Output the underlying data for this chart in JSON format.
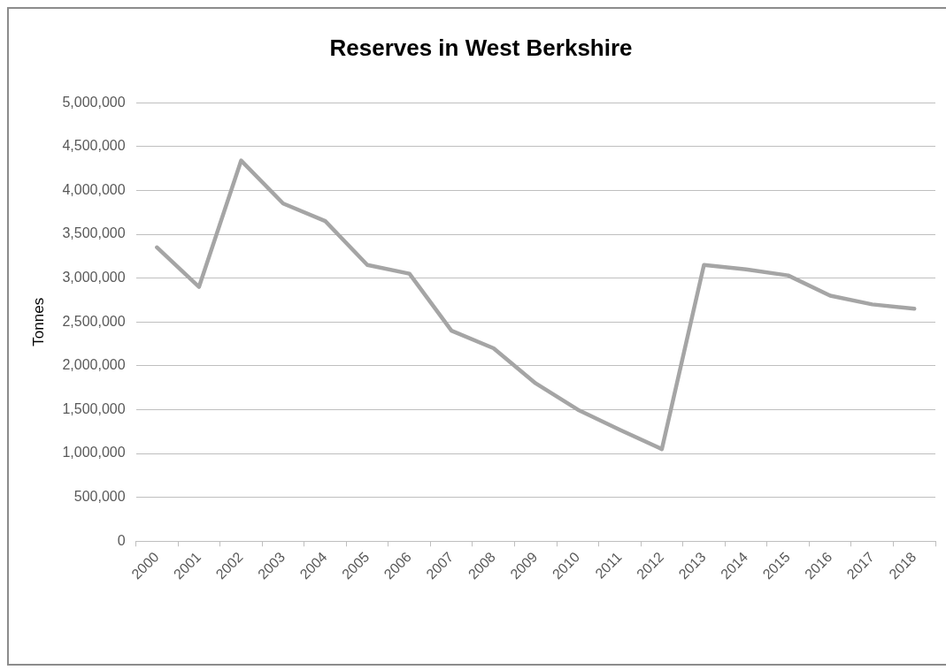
{
  "chart_data": {
    "type": "line",
    "title": "Reserves in West Berkshire",
    "ylabel": "Tonnes",
    "categories": [
      "2000",
      "2001",
      "2002",
      "2003",
      "2004",
      "2005",
      "2006",
      "2007",
      "2008",
      "2009",
      "2010",
      "2011",
      "2012",
      "2013",
      "2014",
      "2015",
      "2016",
      "2017",
      "2018"
    ],
    "series": [
      {
        "color": "#a5a5a5",
        "values": [
          3350000,
          2900000,
          4340000,
          3850000,
          3650000,
          3150000,
          3050000,
          2400000,
          2200000,
          1800000,
          1500000,
          1270000,
          1050000,
          3150000,
          3100000,
          3030000,
          2800000,
          2700000,
          2650000
        ]
      }
    ],
    "ylim": [
      0,
      5000000
    ],
    "yticks": [
      {
        "value": 0,
        "label": "0"
      },
      {
        "value": 500000,
        "label": "500,000"
      },
      {
        "value": 1000000,
        "label": "1,000,000"
      },
      {
        "value": 1500000,
        "label": "1,500,000"
      },
      {
        "value": 2000000,
        "label": "2,000,000"
      },
      {
        "value": 2500000,
        "label": "2,500,000"
      },
      {
        "value": 3000000,
        "label": "3,000,000"
      },
      {
        "value": 3500000,
        "label": "3,500,000"
      },
      {
        "value": 4000000,
        "label": "4,000,000"
      },
      {
        "value": 4500000,
        "label": "4,500,000"
      },
      {
        "value": 5000000,
        "label": "5,000,000"
      }
    ],
    "grid": "y",
    "legend": false,
    "marker": "none",
    "line_style": "solid"
  }
}
